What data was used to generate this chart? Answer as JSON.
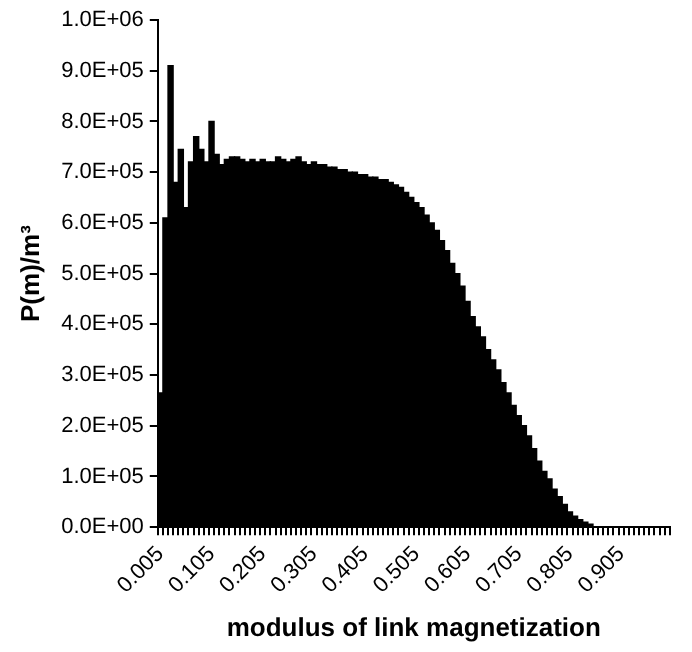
{
  "chart_data": {
    "type": "bar",
    "xlabel": "modulus of link magnetization",
    "ylabel": "P(m)/m³",
    "categories": [
      "0.005",
      null,
      null,
      null,
      null,
      null,
      null,
      null,
      null,
      null,
      "0.105",
      null,
      null,
      null,
      null,
      null,
      null,
      null,
      null,
      null,
      "0.205",
      null,
      null,
      null,
      null,
      null,
      null,
      null,
      null,
      null,
      "0.305",
      null,
      null,
      null,
      null,
      null,
      null,
      null,
      null,
      null,
      "0.405",
      null,
      null,
      null,
      null,
      null,
      null,
      null,
      null,
      null,
      "0.505",
      null,
      null,
      null,
      null,
      null,
      null,
      null,
      null,
      null,
      "0.605",
      null,
      null,
      null,
      null,
      null,
      null,
      null,
      null,
      null,
      "0.705",
      null,
      null,
      null,
      null,
      null,
      null,
      null,
      null,
      null,
      "0.805",
      null,
      null,
      null,
      null,
      null,
      null,
      null,
      null,
      null,
      "0.905",
      null,
      null,
      null,
      null,
      null,
      null,
      null,
      null,
      null
    ],
    "values": [
      265000,
      610000,
      910000,
      680000,
      745000,
      630000,
      720000,
      770000,
      745000,
      720000,
      800000,
      735000,
      715000,
      725000,
      730000,
      730000,
      725000,
      720000,
      725000,
      720000,
      725000,
      720000,
      720000,
      730000,
      725000,
      720000,
      725000,
      730000,
      720000,
      715000,
      720000,
      715000,
      715000,
      710000,
      710000,
      705000,
      705000,
      700000,
      700000,
      695000,
      695000,
      690000,
      690000,
      685000,
      685000,
      680000,
      675000,
      670000,
      660000,
      650000,
      640000,
      630000,
      615000,
      600000,
      585000,
      565000,
      545000,
      520000,
      500000,
      475000,
      445000,
      415000,
      395000,
      375000,
      350000,
      330000,
      310000,
      285000,
      265000,
      240000,
      220000,
      200000,
      180000,
      155000,
      130000,
      110000,
      95000,
      75000,
      60000,
      45000,
      30000,
      22000,
      15000,
      10000,
      6000,
      0,
      0,
      0,
      0,
      0,
      0,
      0,
      0,
      0,
      0,
      0,
      0,
      0,
      0,
      0
    ],
    "color": "#000000",
    "ylim": [
      0,
      1000000
    ],
    "yticks": [
      {
        "value": 0,
        "label": "0.0E+00"
      },
      {
        "value": 100000,
        "label": "1.0E+05"
      },
      {
        "value": 200000,
        "label": "2.0E+05"
      },
      {
        "value": 300000,
        "label": "3.0E+05"
      },
      {
        "value": 400000,
        "label": "4.0E+05"
      },
      {
        "value": 500000,
        "label": "5.0E+05"
      },
      {
        "value": 600000,
        "label": "6.0E+05"
      },
      {
        "value": 700000,
        "label": "7.0E+05"
      },
      {
        "value": 800000,
        "label": "8.0E+05"
      },
      {
        "value": 900000,
        "label": "9.0E+05"
      },
      {
        "value": 1000000,
        "label": "1.0E+06"
      }
    ]
  }
}
